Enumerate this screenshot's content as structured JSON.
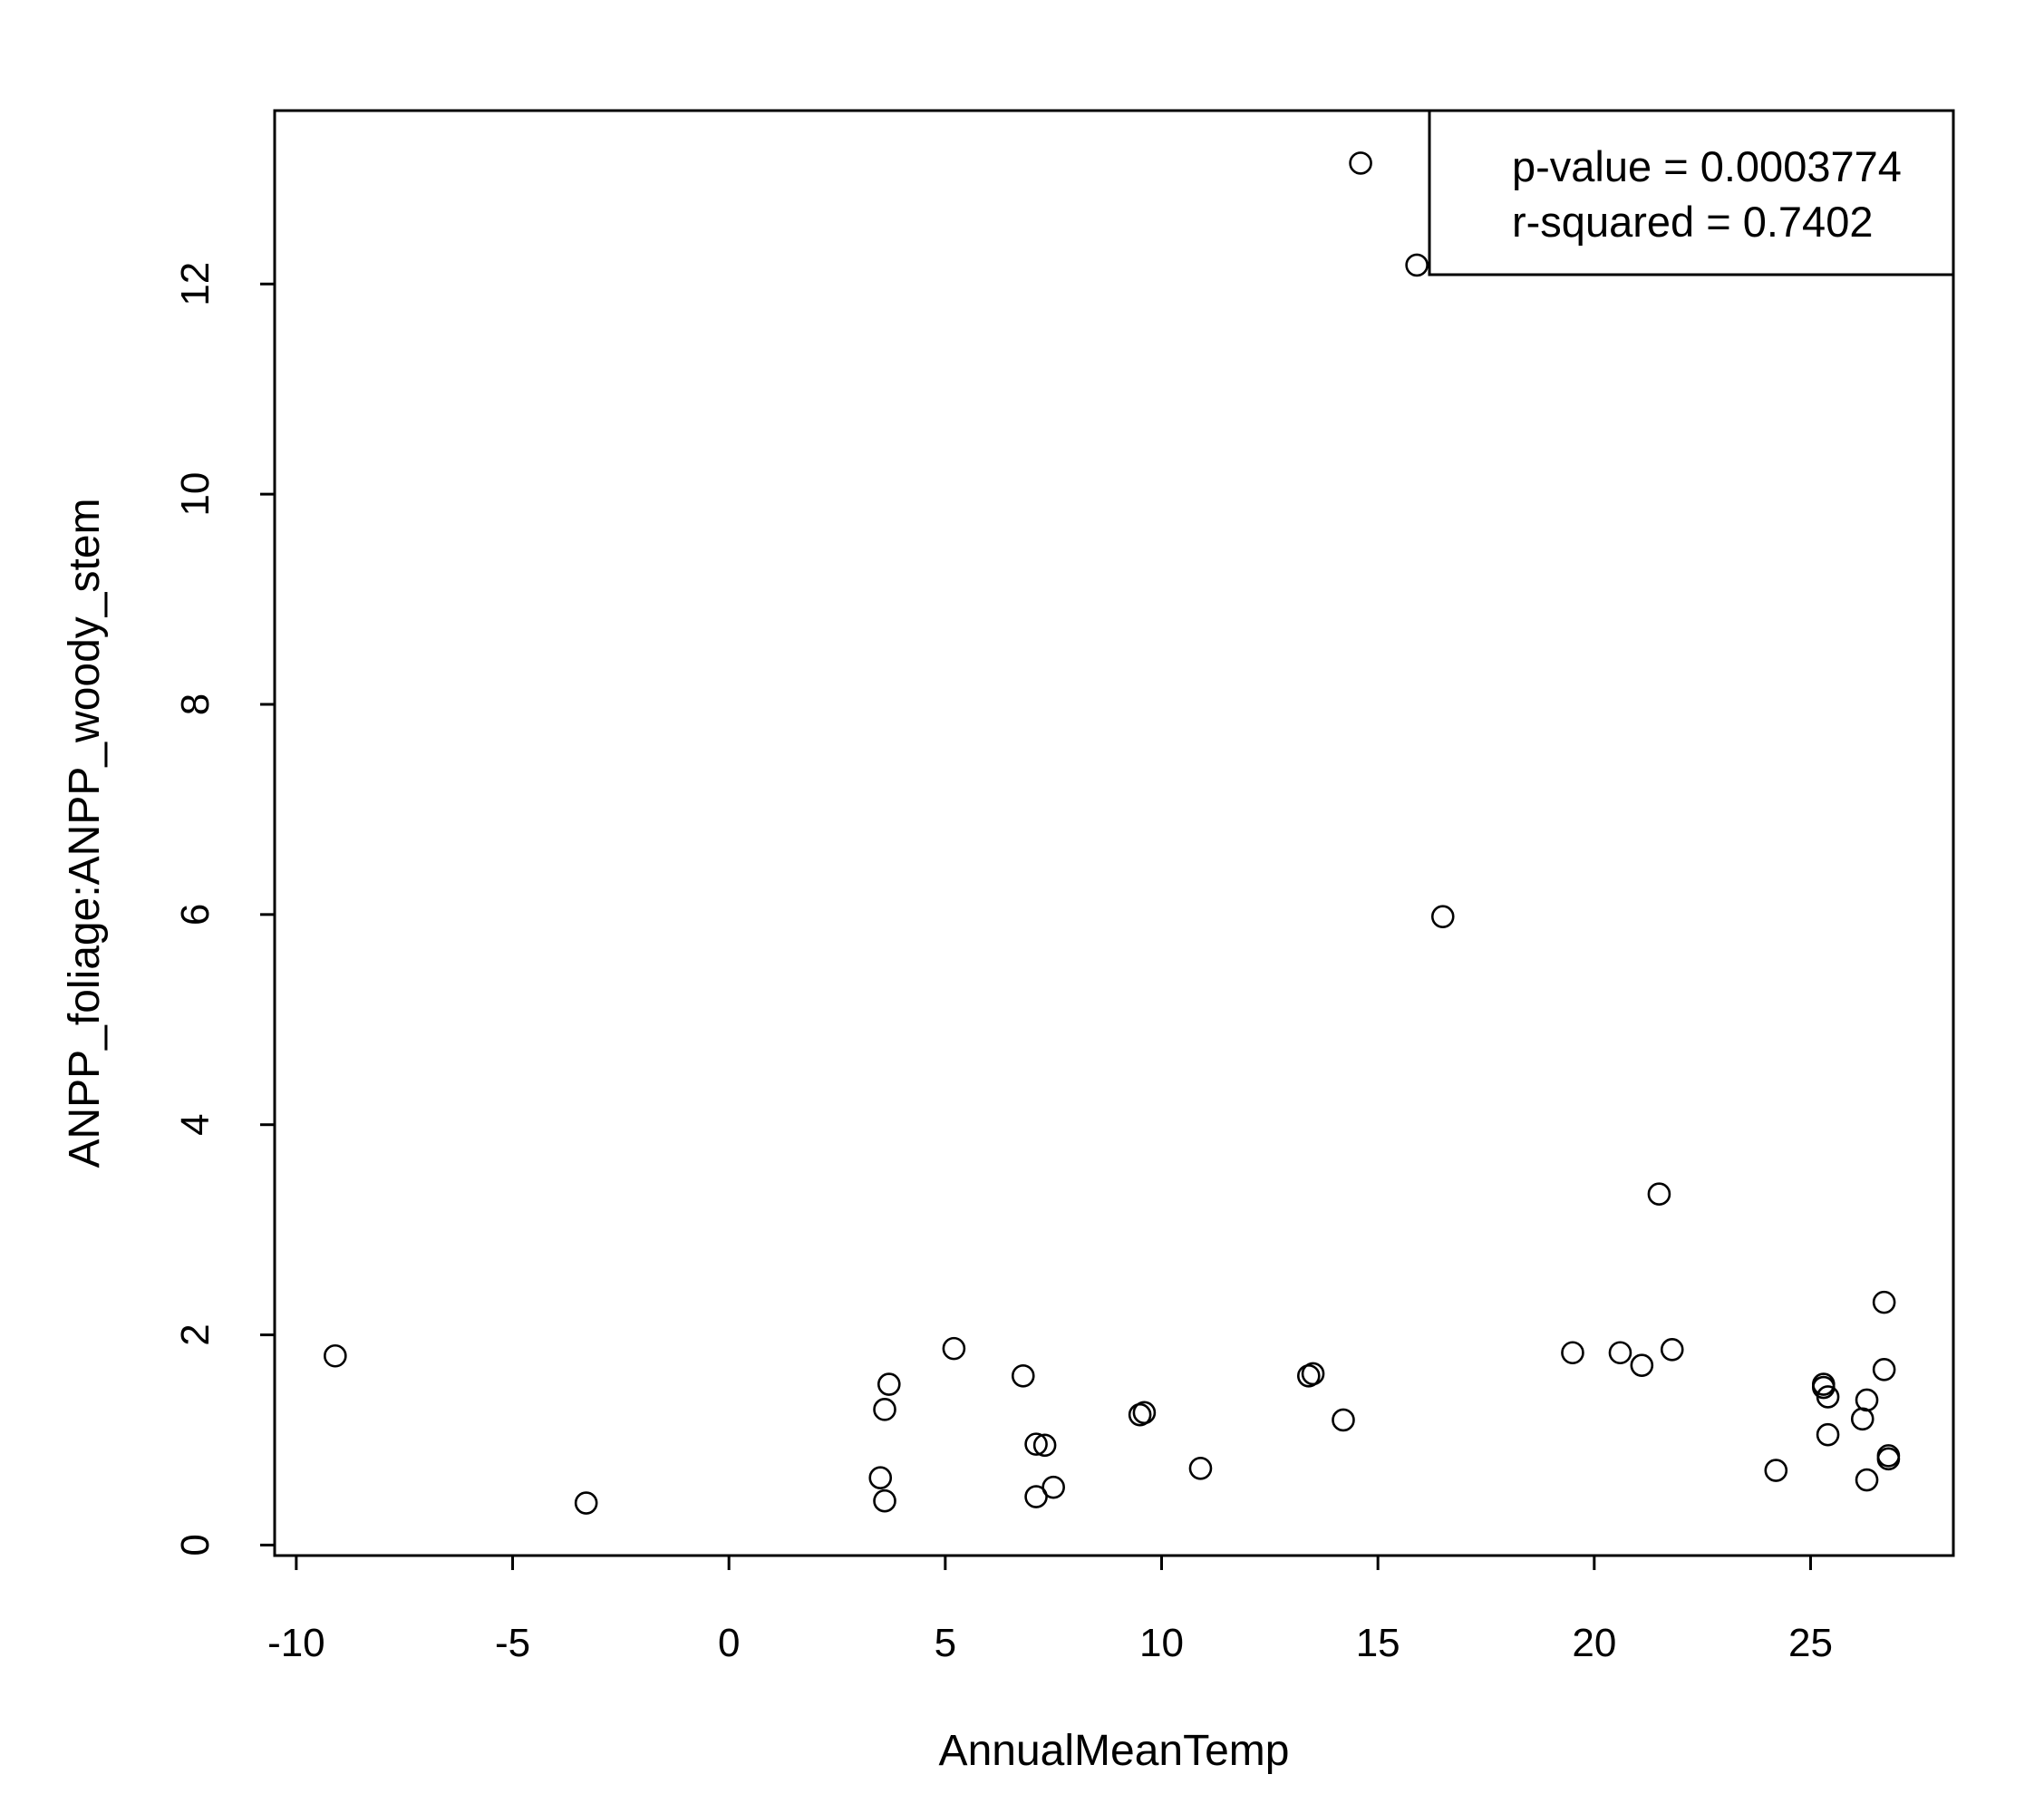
{
  "chart_data": {
    "type": "scatter",
    "xlabel": "AnnualMeanTemp",
    "ylabel": "ANPP_foliage:ANPP_woody_stem",
    "xlim": [
      -10.5,
      28.3
    ],
    "ylim": [
      -0.1,
      13.65
    ],
    "x_ticks": [
      -10,
      -5,
      0,
      5,
      10,
      15,
      20,
      25
    ],
    "x_tick_labels": [
      "-10",
      "-5",
      "0",
      "5",
      "10",
      "15",
      "20",
      "25"
    ],
    "y_ticks": [
      0,
      2,
      4,
      6,
      8,
      10,
      12
    ],
    "y_tick_labels": [
      "0",
      "2",
      "4",
      "6",
      "8",
      "10",
      "12"
    ],
    "grid": false,
    "legend": {
      "placement": "top-right",
      "lines": [
        "p-value = 0.0003774",
        "r-squared = 0.7402"
      ]
    },
    "points": [
      {
        "x": -9.1,
        "y": 1.8
      },
      {
        "x": -3.3,
        "y": 0.4
      },
      {
        "x": 3.5,
        "y": 0.64
      },
      {
        "x": 3.6,
        "y": 0.42
      },
      {
        "x": 3.6,
        "y": 1.29
      },
      {
        "x": 3.7,
        "y": 1.53
      },
      {
        "x": 5.2,
        "y": 1.87
      },
      {
        "x": 6.8,
        "y": 1.61
      },
      {
        "x": 7.1,
        "y": 0.96
      },
      {
        "x": 7.1,
        "y": 0.46
      },
      {
        "x": 7.3,
        "y": 0.95
      },
      {
        "x": 7.5,
        "y": 0.55
      },
      {
        "x": 9.5,
        "y": 1.24
      },
      {
        "x": 9.6,
        "y": 1.26
      },
      {
        "x": 10.9,
        "y": 0.73
      },
      {
        "x": 13.4,
        "y": 1.61
      },
      {
        "x": 13.5,
        "y": 1.63
      },
      {
        "x": 14.2,
        "y": 1.19
      },
      {
        "x": 14.6,
        "y": 13.15
      },
      {
        "x": 15.9,
        "y": 12.18
      },
      {
        "x": 16.5,
        "y": 5.98
      },
      {
        "x": 19.5,
        "y": 1.83
      },
      {
        "x": 20.6,
        "y": 1.83
      },
      {
        "x": 21.1,
        "y": 1.71
      },
      {
        "x": 21.5,
        "y": 3.34
      },
      {
        "x": 21.8,
        "y": 1.86
      },
      {
        "x": 24.2,
        "y": 0.71
      },
      {
        "x": 25.3,
        "y": 1.53
      },
      {
        "x": 25.3,
        "y": 1.5
      },
      {
        "x": 25.4,
        "y": 1.41
      },
      {
        "x": 25.4,
        "y": 1.05
      },
      {
        "x": 26.2,
        "y": 1.2
      },
      {
        "x": 26.3,
        "y": 1.38
      },
      {
        "x": 26.3,
        "y": 0.62
      },
      {
        "x": 26.7,
        "y": 2.31
      },
      {
        "x": 26.7,
        "y": 1.67
      },
      {
        "x": 26.8,
        "y": 0.85
      },
      {
        "x": 26.8,
        "y": 0.82
      }
    ]
  }
}
